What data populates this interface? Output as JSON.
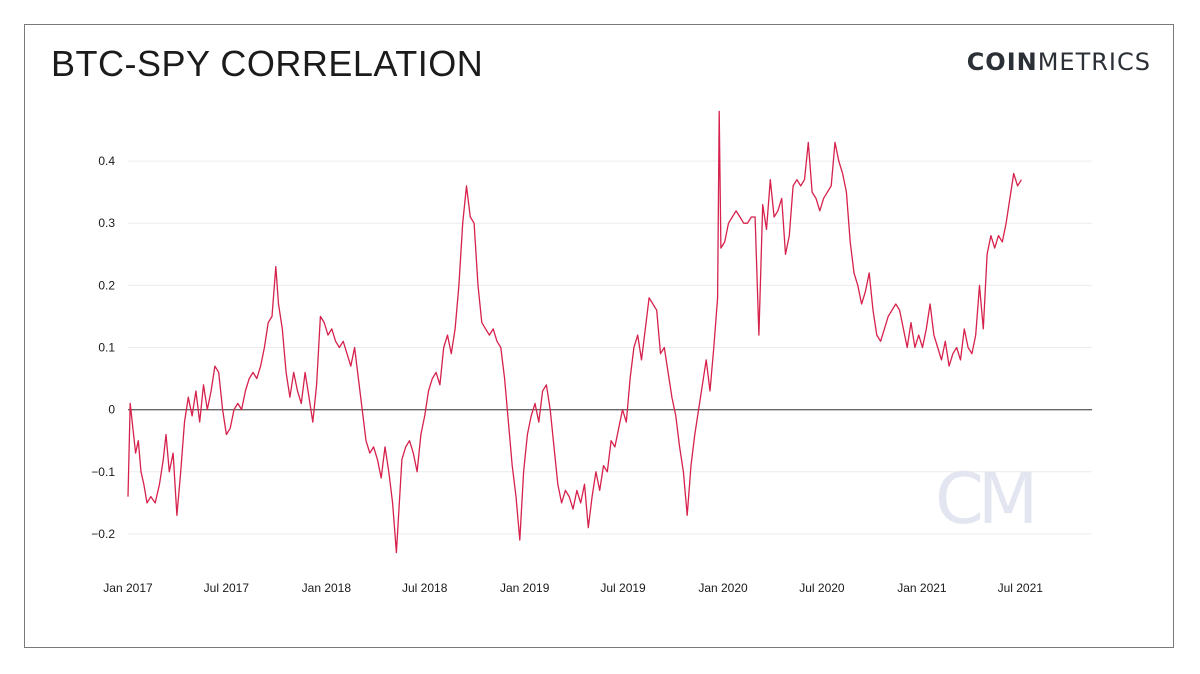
{
  "title": "BTC-SPY CORRELATION",
  "logo": {
    "bold": "COIN",
    "light": "METRICS",
    "watermark": "CM"
  },
  "colors": {
    "line": "#d6214c",
    "zero": "#666666",
    "grid": "#ececec",
    "axis_text": "#1a1a1a"
  },
  "chart_data": {
    "type": "line",
    "title": "BTC-SPY CORRELATION",
    "xlabel": "",
    "ylabel": "",
    "xlim": [
      "2017-01-01",
      "2021-11-10"
    ],
    "ylim": [
      -0.25,
      0.45
    ],
    "grid": true,
    "y_ticks": [
      {
        "v": 0.4,
        "label": "0.4"
      },
      {
        "v": 0.3,
        "label": "0.3"
      },
      {
        "v": 0.2,
        "label": "0.2"
      },
      {
        "v": 0.1,
        "label": "0.1"
      },
      {
        "v": 0.0,
        "label": "0"
      },
      {
        "v": -0.1,
        "label": "−0.1"
      },
      {
        "v": -0.2,
        "label": "−0.2"
      }
    ],
    "x_ticks": [
      {
        "date": "2017-01-01",
        "label": "Jan 2017"
      },
      {
        "date": "2017-07-01",
        "label": "Jul 2017"
      },
      {
        "date": "2018-01-01",
        "label": "Jan 2018"
      },
      {
        "date": "2018-07-01",
        "label": "Jul 2018"
      },
      {
        "date": "2019-01-01",
        "label": "Jan 2019"
      },
      {
        "date": "2019-07-01",
        "label": "Jul 2019"
      },
      {
        "date": "2020-01-01",
        "label": "Jan 2020"
      },
      {
        "date": "2020-07-01",
        "label": "Jul 2020"
      },
      {
        "date": "2021-01-01",
        "label": "Jan 2021"
      },
      {
        "date": "2021-07-01",
        "label": "Jul 2021"
      }
    ],
    "series": [
      {
        "name": "",
        "points": [
          [
            "2017-01-01",
            -0.14
          ],
          [
            "2017-01-05",
            0.01
          ],
          [
            "2017-01-10",
            -0.03
          ],
          [
            "2017-01-15",
            -0.07
          ],
          [
            "2017-01-20",
            -0.05
          ],
          [
            "2017-01-25",
            -0.1
          ],
          [
            "2017-01-30",
            -0.12
          ],
          [
            "2017-02-05",
            -0.15
          ],
          [
            "2017-02-12",
            -0.14
          ],
          [
            "2017-02-20",
            -0.15
          ],
          [
            "2017-02-28",
            -0.12
          ],
          [
            "2017-03-07",
            -0.08
          ],
          [
            "2017-03-12",
            -0.04
          ],
          [
            "2017-03-18",
            -0.1
          ],
          [
            "2017-03-25",
            -0.07
          ],
          [
            "2017-04-01",
            -0.17
          ],
          [
            "2017-04-08",
            -0.1
          ],
          [
            "2017-04-15",
            -0.02
          ],
          [
            "2017-04-22",
            0.02
          ],
          [
            "2017-04-29",
            -0.01
          ],
          [
            "2017-05-06",
            0.03
          ],
          [
            "2017-05-13",
            -0.02
          ],
          [
            "2017-05-20",
            0.04
          ],
          [
            "2017-05-27",
            0.0
          ],
          [
            "2017-06-03",
            0.03
          ],
          [
            "2017-06-10",
            0.07
          ],
          [
            "2017-06-17",
            0.06
          ],
          [
            "2017-06-24",
            0.0
          ],
          [
            "2017-07-01",
            -0.04
          ],
          [
            "2017-07-08",
            -0.03
          ],
          [
            "2017-07-15",
            0.0
          ],
          [
            "2017-07-22",
            0.01
          ],
          [
            "2017-07-29",
            0.0
          ],
          [
            "2017-08-05",
            0.03
          ],
          [
            "2017-08-12",
            0.05
          ],
          [
            "2017-08-19",
            0.06
          ],
          [
            "2017-08-26",
            0.05
          ],
          [
            "2017-09-02",
            0.07
          ],
          [
            "2017-09-09",
            0.1
          ],
          [
            "2017-09-16",
            0.14
          ],
          [
            "2017-09-23",
            0.15
          ],
          [
            "2017-09-30",
            0.23
          ],
          [
            "2017-10-05",
            0.17
          ],
          [
            "2017-10-12",
            0.13
          ],
          [
            "2017-10-19",
            0.06
          ],
          [
            "2017-10-26",
            0.02
          ],
          [
            "2017-11-02",
            0.06
          ],
          [
            "2017-11-09",
            0.03
          ],
          [
            "2017-11-16",
            0.01
          ],
          [
            "2017-11-23",
            0.06
          ],
          [
            "2017-11-30",
            0.02
          ],
          [
            "2017-12-07",
            -0.02
          ],
          [
            "2017-12-14",
            0.04
          ],
          [
            "2017-12-21",
            0.15
          ],
          [
            "2017-12-28",
            0.14
          ],
          [
            "2018-01-04",
            0.12
          ],
          [
            "2018-01-11",
            0.13
          ],
          [
            "2018-01-18",
            0.11
          ],
          [
            "2018-01-25",
            0.1
          ],
          [
            "2018-02-01",
            0.11
          ],
          [
            "2018-02-08",
            0.09
          ],
          [
            "2018-02-15",
            0.07
          ],
          [
            "2018-02-22",
            0.1
          ],
          [
            "2018-03-01",
            0.05
          ],
          [
            "2018-03-08",
            0.0
          ],
          [
            "2018-03-15",
            -0.05
          ],
          [
            "2018-03-22",
            -0.07
          ],
          [
            "2018-03-29",
            -0.06
          ],
          [
            "2018-04-05",
            -0.08
          ],
          [
            "2018-04-12",
            -0.11
          ],
          [
            "2018-04-19",
            -0.06
          ],
          [
            "2018-04-26",
            -0.1
          ],
          [
            "2018-05-03",
            -0.15
          ],
          [
            "2018-05-10",
            -0.23
          ],
          [
            "2018-05-14",
            -0.17
          ],
          [
            "2018-05-20",
            -0.08
          ],
          [
            "2018-05-27",
            -0.06
          ],
          [
            "2018-06-03",
            -0.05
          ],
          [
            "2018-06-10",
            -0.07
          ],
          [
            "2018-06-17",
            -0.1
          ],
          [
            "2018-06-24",
            -0.04
          ],
          [
            "2018-07-01",
            -0.01
          ],
          [
            "2018-07-08",
            0.03
          ],
          [
            "2018-07-15",
            0.05
          ],
          [
            "2018-07-22",
            0.06
          ],
          [
            "2018-07-29",
            0.04
          ],
          [
            "2018-08-05",
            0.1
          ],
          [
            "2018-08-12",
            0.12
          ],
          [
            "2018-08-19",
            0.09
          ],
          [
            "2018-08-26",
            0.13
          ],
          [
            "2018-09-02",
            0.2
          ],
          [
            "2018-09-09",
            0.3
          ],
          [
            "2018-09-16",
            0.36
          ],
          [
            "2018-09-23",
            0.31
          ],
          [
            "2018-09-30",
            0.3
          ],
          [
            "2018-10-07",
            0.2
          ],
          [
            "2018-10-14",
            0.14
          ],
          [
            "2018-10-21",
            0.13
          ],
          [
            "2018-10-28",
            0.12
          ],
          [
            "2018-11-04",
            0.13
          ],
          [
            "2018-11-11",
            0.11
          ],
          [
            "2018-11-18",
            0.1
          ],
          [
            "2018-11-25",
            0.05
          ],
          [
            "2018-12-02",
            -0.02
          ],
          [
            "2018-12-09",
            -0.09
          ],
          [
            "2018-12-16",
            -0.14
          ],
          [
            "2018-12-23",
            -0.21
          ],
          [
            "2018-12-30",
            -0.1
          ],
          [
            "2019-01-06",
            -0.04
          ],
          [
            "2019-01-13",
            -0.01
          ],
          [
            "2019-01-20",
            0.01
          ],
          [
            "2019-01-27",
            -0.02
          ],
          [
            "2019-02-03",
            0.03
          ],
          [
            "2019-02-10",
            0.04
          ],
          [
            "2019-02-17",
            0.0
          ],
          [
            "2019-02-24",
            -0.06
          ],
          [
            "2019-03-03",
            -0.12
          ],
          [
            "2019-03-10",
            -0.15
          ],
          [
            "2019-03-17",
            -0.13
          ],
          [
            "2019-03-24",
            -0.14
          ],
          [
            "2019-03-31",
            -0.16
          ],
          [
            "2019-04-07",
            -0.13
          ],
          [
            "2019-04-14",
            -0.15
          ],
          [
            "2019-04-21",
            -0.12
          ],
          [
            "2019-04-28",
            -0.19
          ],
          [
            "2019-05-05",
            -0.14
          ],
          [
            "2019-05-12",
            -0.1
          ],
          [
            "2019-05-19",
            -0.13
          ],
          [
            "2019-05-26",
            -0.09
          ],
          [
            "2019-06-02",
            -0.1
          ],
          [
            "2019-06-09",
            -0.05
          ],
          [
            "2019-06-16",
            -0.06
          ],
          [
            "2019-06-23",
            -0.03
          ],
          [
            "2019-06-30",
            0.0
          ],
          [
            "2019-07-07",
            -0.02
          ],
          [
            "2019-07-14",
            0.05
          ],
          [
            "2019-07-21",
            0.1
          ],
          [
            "2019-07-28",
            0.12
          ],
          [
            "2019-08-04",
            0.08
          ],
          [
            "2019-08-11",
            0.13
          ],
          [
            "2019-08-18",
            0.18
          ],
          [
            "2019-08-25",
            0.17
          ],
          [
            "2019-09-01",
            0.16
          ],
          [
            "2019-09-08",
            0.09
          ],
          [
            "2019-09-15",
            0.1
          ],
          [
            "2019-09-22",
            0.06
          ],
          [
            "2019-09-29",
            0.02
          ],
          [
            "2019-10-06",
            -0.01
          ],
          [
            "2019-10-13",
            -0.06
          ],
          [
            "2019-10-20",
            -0.1
          ],
          [
            "2019-10-27",
            -0.17
          ],
          [
            "2019-11-03",
            -0.09
          ],
          [
            "2019-11-10",
            -0.04
          ],
          [
            "2019-11-17",
            0.0
          ],
          [
            "2019-11-24",
            0.04
          ],
          [
            "2019-12-01",
            0.08
          ],
          [
            "2019-12-08",
            0.03
          ],
          [
            "2019-12-15",
            0.1
          ],
          [
            "2019-12-22",
            0.18
          ],
          [
            "2019-12-25",
            0.48
          ],
          [
            "2019-12-28",
            0.26
          ],
          [
            "2020-01-04",
            0.27
          ],
          [
            "2020-01-11",
            0.3
          ],
          [
            "2020-01-18",
            0.31
          ],
          [
            "2020-01-25",
            0.32
          ],
          [
            "2020-02-01",
            0.31
          ],
          [
            "2020-02-08",
            0.3
          ],
          [
            "2020-02-15",
            0.3
          ],
          [
            "2020-02-22",
            0.31
          ],
          [
            "2020-02-29",
            0.31
          ],
          [
            "2020-03-07",
            0.12
          ],
          [
            "2020-03-14",
            0.33
          ],
          [
            "2020-03-21",
            0.29
          ],
          [
            "2020-03-28",
            0.37
          ],
          [
            "2020-04-04",
            0.31
          ],
          [
            "2020-04-11",
            0.32
          ],
          [
            "2020-04-18",
            0.34
          ],
          [
            "2020-04-25",
            0.25
          ],
          [
            "2020-05-02",
            0.28
          ],
          [
            "2020-05-09",
            0.36
          ],
          [
            "2020-05-16",
            0.37
          ],
          [
            "2020-05-23",
            0.36
          ],
          [
            "2020-05-30",
            0.37
          ],
          [
            "2020-06-06",
            0.43
          ],
          [
            "2020-06-13",
            0.35
          ],
          [
            "2020-06-20",
            0.34
          ],
          [
            "2020-06-27",
            0.32
          ],
          [
            "2020-07-04",
            0.34
          ],
          [
            "2020-07-11",
            0.35
          ],
          [
            "2020-07-18",
            0.36
          ],
          [
            "2020-07-25",
            0.43
          ],
          [
            "2020-08-01",
            0.4
          ],
          [
            "2020-08-08",
            0.38
          ],
          [
            "2020-08-15",
            0.35
          ],
          [
            "2020-08-22",
            0.27
          ],
          [
            "2020-08-29",
            0.22
          ],
          [
            "2020-09-05",
            0.2
          ],
          [
            "2020-09-12",
            0.17
          ],
          [
            "2020-09-19",
            0.19
          ],
          [
            "2020-09-26",
            0.22
          ],
          [
            "2020-10-03",
            0.16
          ],
          [
            "2020-10-10",
            0.12
          ],
          [
            "2020-10-17",
            0.11
          ],
          [
            "2020-10-24",
            0.13
          ],
          [
            "2020-10-31",
            0.15
          ],
          [
            "2020-11-07",
            0.16
          ],
          [
            "2020-11-14",
            0.17
          ],
          [
            "2020-11-21",
            0.16
          ],
          [
            "2020-11-28",
            0.13
          ],
          [
            "2020-12-05",
            0.1
          ],
          [
            "2020-12-12",
            0.14
          ],
          [
            "2020-12-19",
            0.1
          ],
          [
            "2020-12-26",
            0.12
          ],
          [
            "2021-01-02",
            0.1
          ],
          [
            "2021-01-09",
            0.13
          ],
          [
            "2021-01-16",
            0.17
          ],
          [
            "2021-01-23",
            0.12
          ],
          [
            "2021-01-30",
            0.1
          ],
          [
            "2021-02-06",
            0.08
          ],
          [
            "2021-02-13",
            0.11
          ],
          [
            "2021-02-20",
            0.07
          ],
          [
            "2021-02-27",
            0.09
          ],
          [
            "2021-03-06",
            0.1
          ],
          [
            "2021-03-13",
            0.08
          ],
          [
            "2021-03-20",
            0.13
          ],
          [
            "2021-03-27",
            0.1
          ],
          [
            "2021-04-03",
            0.09
          ],
          [
            "2021-04-10",
            0.12
          ],
          [
            "2021-04-17",
            0.2
          ],
          [
            "2021-04-24",
            0.13
          ],
          [
            "2021-05-01",
            0.25
          ],
          [
            "2021-05-08",
            0.28
          ],
          [
            "2021-05-15",
            0.26
          ],
          [
            "2021-05-22",
            0.28
          ],
          [
            "2021-05-29",
            0.27
          ],
          [
            "2021-06-05",
            0.3
          ],
          [
            "2021-06-12",
            0.34
          ],
          [
            "2021-06-19",
            0.38
          ],
          [
            "2021-06-26",
            0.36
          ],
          [
            "2021-07-03",
            0.37
          ]
        ]
      }
    ]
  }
}
